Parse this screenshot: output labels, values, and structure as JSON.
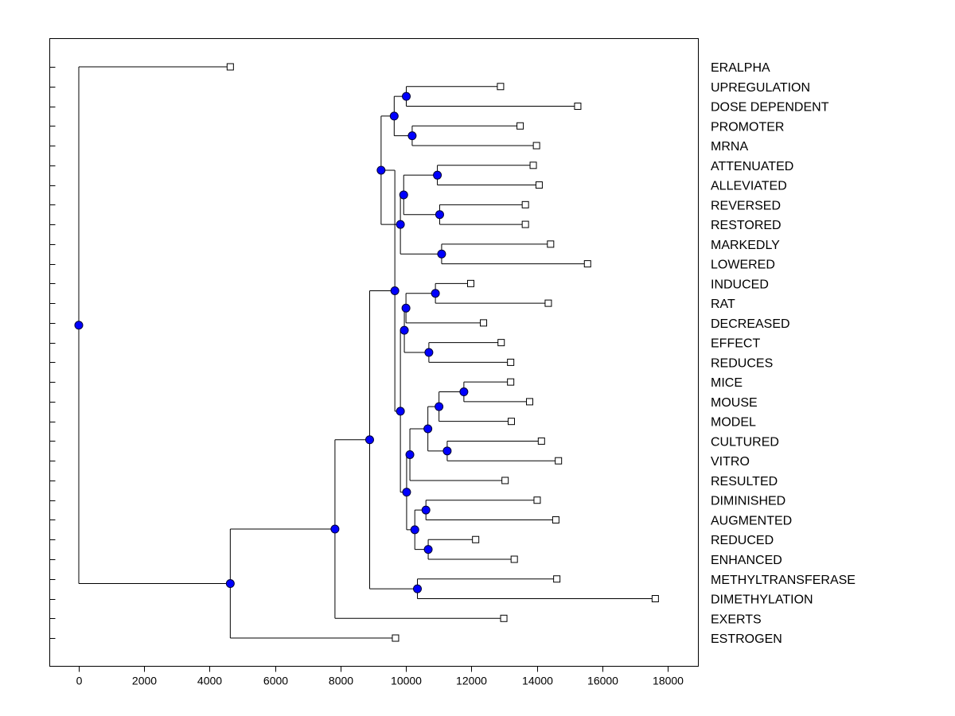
{
  "chart_data": {
    "type": "dendrogram",
    "orientation": "horizontal",
    "xlim": [
      -900,
      18600
    ],
    "xticks": [
      0,
      2000,
      4000,
      6000,
      8000,
      10000,
      12000,
      14000,
      16000,
      18000
    ],
    "xtick_labels": [
      "0",
      "2000",
      "4000",
      "6000",
      "8000",
      "10000",
      "12000",
      "14000",
      "16000",
      "18000"
    ],
    "colors": {
      "node_fill": "#0000ff",
      "node_stroke": "#000033",
      "leaf_fill": "#ffffff",
      "line": "#000000"
    },
    "leaves": [
      {
        "label": "ERALPHA",
        "x": 4630
      },
      {
        "label": "UPREGULATION",
        "x": 12890
      },
      {
        "label": "DOSE DEPENDENT",
        "x": 15250
      },
      {
        "label": "PROMOTER",
        "x": 13490
      },
      {
        "label": "MRNA",
        "x": 13990
      },
      {
        "label": "ATTENUATED",
        "x": 13890
      },
      {
        "label": "ALLEVIATED",
        "x": 14070
      },
      {
        "label": "REVERSED",
        "x": 13650
      },
      {
        "label": "RESTORED",
        "x": 13650
      },
      {
        "label": "MARKEDLY",
        "x": 14420
      },
      {
        "label": "LOWERED",
        "x": 15550
      },
      {
        "label": "INDUCED",
        "x": 11980
      },
      {
        "label": "RAT",
        "x": 14350
      },
      {
        "label": "DECREASED",
        "x": 12370
      },
      {
        "label": "EFFECT",
        "x": 12910
      },
      {
        "label": "REDUCES",
        "x": 13200
      },
      {
        "label": "MICE",
        "x": 13200
      },
      {
        "label": "MOUSE",
        "x": 13780
      },
      {
        "label": "MODEL",
        "x": 13220
      },
      {
        "label": "CULTURED",
        "x": 14140
      },
      {
        "label": "VITRO",
        "x": 14660
      },
      {
        "label": "RESULTED",
        "x": 13030
      },
      {
        "label": "DIMINISHED",
        "x": 14010
      },
      {
        "label": "AUGMENTED",
        "x": 14580
      },
      {
        "label": "REDUCED",
        "x": 12130
      },
      {
        "label": "ENHANCED",
        "x": 13310
      },
      {
        "label": "METHYLTRANSFERASE",
        "x": 14610
      },
      {
        "label": "DIMETHYLATION",
        "x": 17620
      },
      {
        "label": "EXERTS",
        "x": 12990
      },
      {
        "label": "ESTROGEN",
        "x": 9680
      }
    ],
    "merges": [
      {
        "x": 10010,
        "children": [
          1,
          2
        ]
      },
      {
        "x": 10190,
        "children": [
          3,
          4
        ]
      },
      {
        "x": 9640,
        "children": [
          "m0",
          "m1"
        ]
      },
      {
        "x": 10960,
        "children": [
          5,
          6
        ]
      },
      {
        "x": 11030,
        "children": [
          7,
          8
        ]
      },
      {
        "x": 9930,
        "children": [
          "m3",
          "m4"
        ]
      },
      {
        "x": 11090,
        "children": [
          9,
          10
        ]
      },
      {
        "x": 9830,
        "children": [
          "m5",
          "m6"
        ]
      },
      {
        "x": 9240,
        "children": [
          "m2",
          "m7"
        ]
      },
      {
        "x": 10900,
        "children": [
          11,
          12
        ]
      },
      {
        "x": 10000,
        "children": [
          "m9",
          13
        ]
      },
      {
        "x": 10700,
        "children": [
          14,
          15
        ]
      },
      {
        "x": 9950,
        "children": [
          "m10",
          "m11"
        ]
      },
      {
        "x": 11770,
        "children": [
          16,
          17
        ]
      },
      {
        "x": 11010,
        "children": [
          "m13",
          18
        ]
      },
      {
        "x": 11260,
        "children": [
          19,
          20
        ]
      },
      {
        "x": 10670,
        "children": [
          "m14",
          "m15"
        ]
      },
      {
        "x": 10120,
        "children": [
          "m16",
          21
        ]
      },
      {
        "x": 10610,
        "children": [
          22,
          23
        ]
      },
      {
        "x": 10680,
        "children": [
          24,
          25
        ]
      },
      {
        "x": 10270,
        "children": [
          "m18",
          "m19"
        ]
      },
      {
        "x": 10020,
        "children": [
          "m17",
          "m20"
        ]
      },
      {
        "x": 9830,
        "children": [
          "m12",
          "m21"
        ]
      },
      {
        "x": 9660,
        "children": [
          "m8",
          "m22"
        ]
      },
      {
        "x": 10350,
        "children": [
          26,
          27
        ]
      },
      {
        "x": 8890,
        "children": [
          "m23",
          "m24"
        ]
      },
      {
        "x": 7830,
        "children": [
          "m25",
          28
        ]
      },
      {
        "x": 4630,
        "children": [
          "m26",
          29
        ]
      },
      {
        "x": 0,
        "children": [
          0,
          "m27"
        ]
      }
    ]
  }
}
